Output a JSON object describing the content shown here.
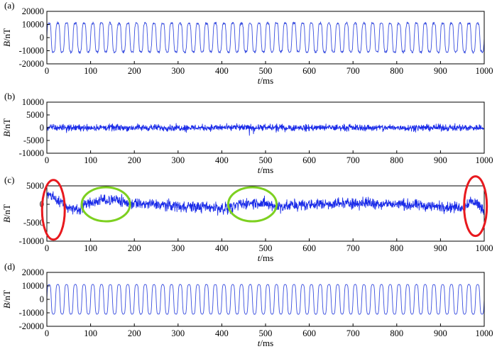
{
  "colors": {
    "signal_thin": "#3a4fe0",
    "signal_thick": "#1a2be8",
    "red_marker": "#e8191e",
    "green_marker": "#7dd020"
  },
  "chart_data": [
    {
      "type": "line",
      "panel_label": "(a)",
      "ylabel_italic": "B",
      "ylabel_unit": "/nT",
      "xlabel_italic": "t",
      "xlabel_unit": "/ms",
      "xlim": [
        0,
        1000
      ],
      "ylim": [
        -20000,
        20000
      ],
      "x_ticks": [
        "0",
        "100",
        "200",
        "300",
        "400",
        "500",
        "600",
        "700",
        "800",
        "900",
        "1000"
      ],
      "y_ticks": [
        "20000",
        "10000",
        "0",
        "-10000",
        "-20000"
      ],
      "series": [
        {
          "waveform": "periodic",
          "frequency_hz": 50,
          "peak_nT": 11000,
          "noise_nT": 1200,
          "x_range": [
            0,
            1000
          ]
        }
      ]
    },
    {
      "type": "line",
      "panel_label": "(b)",
      "ylabel_italic": "B",
      "ylabel_unit": "/nT",
      "xlabel_italic": "t",
      "xlabel_unit": "/ms",
      "xlim": [
        0,
        1000
      ],
      "ylim": [
        -10000,
        10000
      ],
      "x_ticks": [
        "0",
        "100",
        "200",
        "300",
        "400",
        "500",
        "600",
        "700",
        "800",
        "900",
        "1000"
      ],
      "y_ticks": [
        "10000",
        "5000",
        "0",
        "-5000",
        "-10000"
      ],
      "series": [
        {
          "waveform": "noise",
          "amplitude_nT": 1300,
          "x_range": [
            0,
            1000
          ]
        }
      ]
    },
    {
      "type": "line",
      "panel_label": "(c)",
      "ylabel_italic": "B",
      "ylabel_unit": "/nT",
      "xlabel_italic": "t",
      "xlabel_unit": "/ms",
      "xlim": [
        0,
        1000
      ],
      "ylim": [
        -10000,
        5000
      ],
      "x_ticks": [
        "0",
        "100",
        "200",
        "300",
        "400",
        "500",
        "600",
        "700",
        "800",
        "900",
        "1000"
      ],
      "y_ticks": [
        "5000",
        "0",
        "-5000",
        "-10000"
      ],
      "series": [
        {
          "waveform": "drifting-noise",
          "amplitude_nT": 1500,
          "x_range": [
            0,
            1000
          ]
        }
      ],
      "annotations": [
        {
          "shape": "ellipse",
          "color": "red",
          "center": [
            15,
            -1500
          ]
        },
        {
          "shape": "ellipse",
          "color": "green",
          "center": [
            135,
            0
          ]
        },
        {
          "shape": "ellipse",
          "color": "green",
          "center": [
            470,
            0
          ]
        },
        {
          "shape": "ellipse",
          "color": "red",
          "center": [
            980,
            -500
          ]
        }
      ]
    },
    {
      "type": "line",
      "panel_label": "(d)",
      "ylabel_italic": "B",
      "ylabel_unit": "/nT",
      "xlabel_italic": "t",
      "xlabel_unit": "/ms",
      "xlim": [
        0,
        1000
      ],
      "ylim": [
        -20000,
        20000
      ],
      "x_ticks": [
        "0",
        "100",
        "200",
        "300",
        "400",
        "500",
        "600",
        "700",
        "800",
        "900",
        "1000"
      ],
      "y_ticks": [
        "20000",
        "10000",
        "0",
        "-10000",
        "-20000"
      ],
      "series": [
        {
          "waveform": "periodic",
          "frequency_hz": 50,
          "peak_nT": 11000,
          "noise_nT": 250,
          "x_range": [
            0,
            1000
          ]
        }
      ]
    }
  ]
}
